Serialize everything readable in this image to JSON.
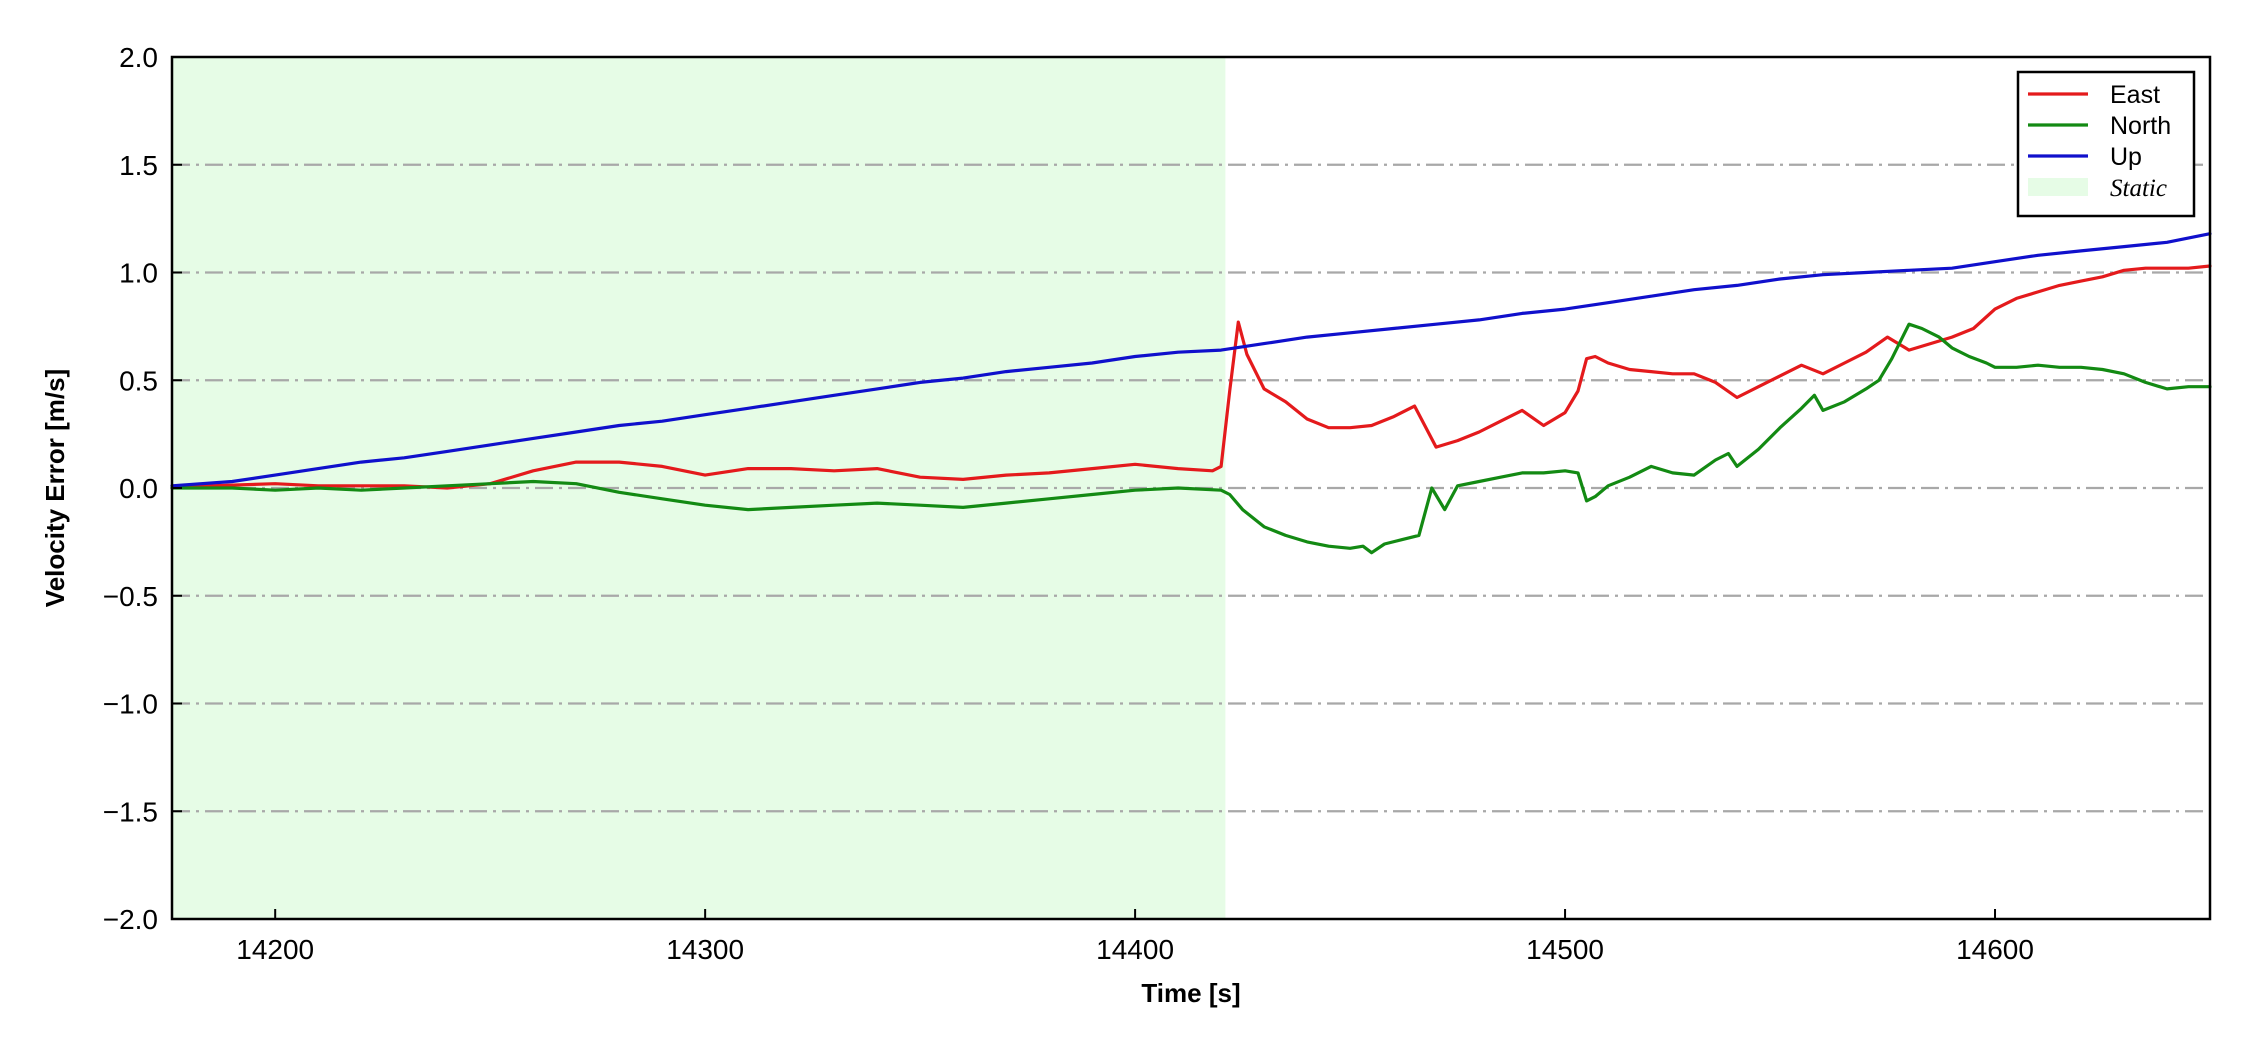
{
  "chart_data": {
    "type": "line",
    "xlabel": "Time [s]",
    "ylabel": "Velocity Error [m/s]",
    "xlim": [
      14176,
      14650
    ],
    "ylim": [
      -2.0,
      2.0
    ],
    "xticks": [
      14200,
      14300,
      14400,
      14500,
      14600
    ],
    "yticks": [
      -2.0,
      -1.5,
      -1.0,
      -0.5,
      0.0,
      0.5,
      1.0,
      1.5,
      2.0
    ],
    "xtick_labels": [
      "14200",
      "14300",
      "14400",
      "14500",
      "14600"
    ],
    "ytick_labels": [
      "−2.0",
      "−1.5",
      "−1.0",
      "−0.5",
      "0.0",
      "0.5",
      "1.0",
      "1.5",
      "2.0"
    ],
    "grid": "horizontal dash-dot",
    "legend_position": "top-right",
    "shaded_region": {
      "name": "Static",
      "x_start": 14176,
      "x_end": 14421,
      "color": "#e6fce6"
    },
    "series": [
      {
        "name": "East",
        "color": "#e41a1c",
        "x": [
          14176,
          14185,
          14200,
          14210,
          14220,
          14230,
          14240,
          14250,
          14260,
          14270,
          14280,
          14290,
          14300,
          14310,
          14320,
          14330,
          14340,
          14350,
          14360,
          14370,
          14380,
          14390,
          14400,
          14410,
          14418,
          14420,
          14422,
          14424,
          14426,
          14430,
          14435,
          14440,
          14445,
          14450,
          14455,
          14460,
          14465,
          14470,
          14475,
          14480,
          14485,
          14490,
          14495,
          14500,
          14503,
          14505,
          14507,
          14510,
          14515,
          14520,
          14525,
          14530,
          14535,
          14540,
          14545,
          14550,
          14555,
          14560,
          14565,
          14570,
          14575,
          14580,
          14585,
          14590,
          14595,
          14600,
          14605,
          14610,
          14615,
          14620,
          14625,
          14630,
          14635,
          14640,
          14645,
          14650
        ],
        "y": [
          0.0,
          0.01,
          0.02,
          0.01,
          0.01,
          0.01,
          0.0,
          0.02,
          0.08,
          0.12,
          0.12,
          0.1,
          0.06,
          0.09,
          0.09,
          0.08,
          0.09,
          0.05,
          0.04,
          0.06,
          0.07,
          0.09,
          0.11,
          0.09,
          0.08,
          0.1,
          0.45,
          0.77,
          0.62,
          0.46,
          0.4,
          0.32,
          0.28,
          0.28,
          0.29,
          0.33,
          0.38,
          0.19,
          0.22,
          0.26,
          0.31,
          0.36,
          0.29,
          0.35,
          0.45,
          0.6,
          0.61,
          0.58,
          0.55,
          0.54,
          0.53,
          0.53,
          0.49,
          0.42,
          0.47,
          0.52,
          0.57,
          0.53,
          0.58,
          0.63,
          0.7,
          0.64,
          0.67,
          0.7,
          0.74,
          0.83,
          0.88,
          0.91,
          0.94,
          0.96,
          0.98,
          1.01,
          1.02,
          1.02,
          1.02,
          1.03
        ]
      },
      {
        "name": "North",
        "color": "#138a13",
        "x": [
          14176,
          14190,
          14200,
          14210,
          14220,
          14230,
          14240,
          14250,
          14260,
          14270,
          14280,
          14290,
          14300,
          14310,
          14320,
          14330,
          14340,
          14350,
          14360,
          14370,
          14380,
          14390,
          14400,
          14410,
          14420,
          14422,
          14425,
          14430,
          14435,
          14440,
          14445,
          14450,
          14453,
          14455,
          14458,
          14462,
          14466,
          14469,
          14472,
          14475,
          14480,
          14485,
          14490,
          14495,
          14500,
          14503,
          14505,
          14507,
          14510,
          14515,
          14520,
          14525,
          14530,
          14535,
          14538,
          14540,
          14545,
          14550,
          14555,
          14558,
          14560,
          14565,
          14570,
          14573,
          14576,
          14580,
          14583,
          14587,
          14590,
          14594,
          14598,
          14600,
          14605,
          14610,
          14615,
          14620,
          14625,
          14630,
          14635,
          14640,
          14645,
          14650
        ],
        "y": [
          0.0,
          0.0,
          -0.01,
          0.0,
          -0.01,
          0.0,
          0.01,
          0.02,
          0.03,
          0.02,
          -0.02,
          -0.05,
          -0.08,
          -0.1,
          -0.09,
          -0.08,
          -0.07,
          -0.08,
          -0.09,
          -0.07,
          -0.05,
          -0.03,
          -0.01,
          0.0,
          -0.01,
          -0.03,
          -0.1,
          -0.18,
          -0.22,
          -0.25,
          -0.27,
          -0.28,
          -0.27,
          -0.3,
          -0.26,
          -0.24,
          -0.22,
          0.0,
          -0.1,
          0.01,
          0.03,
          0.05,
          0.07,
          0.07,
          0.08,
          0.07,
          -0.06,
          -0.04,
          0.01,
          0.05,
          0.1,
          0.07,
          0.06,
          0.13,
          0.16,
          0.1,
          0.18,
          0.28,
          0.37,
          0.43,
          0.36,
          0.4,
          0.46,
          0.5,
          0.6,
          0.76,
          0.74,
          0.7,
          0.65,
          0.61,
          0.58,
          0.56,
          0.56,
          0.57,
          0.56,
          0.56,
          0.55,
          0.53,
          0.49,
          0.46,
          0.47,
          0.47
        ]
      },
      {
        "name": "Up",
        "color": "#1010cc",
        "x": [
          14176,
          14190,
          14200,
          14210,
          14220,
          14230,
          14240,
          14250,
          14260,
          14270,
          14280,
          14290,
          14300,
          14310,
          14320,
          14330,
          14340,
          14350,
          14360,
          14370,
          14380,
          14390,
          14400,
          14410,
          14420,
          14430,
          14440,
          14450,
          14460,
          14470,
          14480,
          14490,
          14500,
          14510,
          14520,
          14530,
          14540,
          14550,
          14560,
          14570,
          14580,
          14590,
          14600,
          14610,
          14620,
          14630,
          14640,
          14650
        ],
        "y": [
          0.01,
          0.03,
          0.06,
          0.09,
          0.12,
          0.14,
          0.17,
          0.2,
          0.23,
          0.26,
          0.29,
          0.31,
          0.34,
          0.37,
          0.4,
          0.43,
          0.46,
          0.49,
          0.51,
          0.54,
          0.56,
          0.58,
          0.61,
          0.63,
          0.64,
          0.67,
          0.7,
          0.72,
          0.74,
          0.76,
          0.78,
          0.81,
          0.83,
          0.86,
          0.89,
          0.92,
          0.94,
          0.97,
          0.99,
          1.0,
          1.01,
          1.02,
          1.05,
          1.08,
          1.1,
          1.12,
          1.14,
          1.18
        ]
      }
    ]
  }
}
